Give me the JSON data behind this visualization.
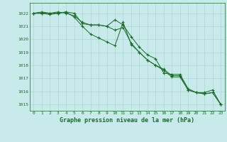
{
  "title": "Graphe pression niveau de la mer (hPa)",
  "bg_color": "#c8eaea",
  "grid_color": "#b0d4d4",
  "line_color": "#1a6b2a",
  "x_labels": [
    "0",
    "1",
    "2",
    "3",
    "4",
    "5",
    "6",
    "7",
    "8",
    "9",
    "10",
    "11",
    "12",
    "13",
    "14",
    "15",
    "16",
    "17",
    "18",
    "19",
    "20",
    "21",
    "22",
    "23"
  ],
  "ylim": [
    1014.5,
    1022.8
  ],
  "yticks": [
    1015,
    1016,
    1017,
    1018,
    1019,
    1020,
    1021,
    1022
  ],
  "line1": [
    1022.0,
    1022.1,
    1022.0,
    1022.1,
    1022.0,
    1021.8,
    1021.3,
    1021.1,
    1021.1,
    1021.0,
    1021.5,
    1021.1,
    1020.2,
    1019.4,
    1018.8,
    1018.5,
    1017.4,
    1017.3,
    1017.3,
    1016.2,
    1015.9,
    1015.9,
    1016.1,
    1015.0
  ],
  "line2": [
    1022.0,
    1022.0,
    1021.9,
    1022.0,
    1022.1,
    1021.7,
    1021.0,
    1020.4,
    1020.1,
    1019.8,
    1019.5,
    1021.3,
    1019.6,
    1019.0,
    1018.4,
    1018.0,
    1017.7,
    1017.2,
    1017.2,
    1016.1,
    1015.9,
    1015.8,
    1015.9,
    1015.0
  ],
  "line3": [
    1022.0,
    1022.0,
    1022.0,
    1022.0,
    1022.1,
    1022.0,
    1021.2,
    1021.1,
    1021.1,
    1021.0,
    1020.7,
    1020.9,
    1019.7,
    1019.0,
    1018.4,
    1018.0,
    1017.6,
    1017.1,
    1017.1,
    1016.1,
    1015.9,
    1015.8,
    1015.9,
    1015.0
  ],
  "figsize": [
    3.2,
    2.0
  ],
  "dpi": 100
}
